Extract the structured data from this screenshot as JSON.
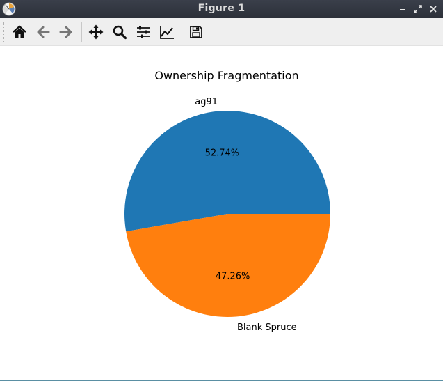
{
  "window": {
    "title": "Figure 1"
  },
  "toolbar": {
    "tools": [
      {
        "name": "home-icon",
        "tooltip": ""
      },
      {
        "name": "back-arrow-icon",
        "tooltip": ""
      },
      {
        "name": "forward-arrow-icon",
        "tooltip": ""
      },
      {
        "name": "pan-move-icon",
        "tooltip": ""
      },
      {
        "name": "zoom-magnifier-icon",
        "tooltip": ""
      },
      {
        "name": "configure-subplots-icon",
        "tooltip": ""
      },
      {
        "name": "edit-axis-curve-icon",
        "tooltip": ""
      },
      {
        "name": "save-floppy-icon",
        "tooltip": ""
      }
    ]
  },
  "colors": {
    "slice_1": "#1f77b4",
    "slice_2": "#ff7f0e",
    "titlebar": "#2e3440",
    "toolbar": "#efefef"
  },
  "chart_data": {
    "type": "pie",
    "title": "Ownership Fragmentation",
    "categories": [
      "ag91",
      "Blank Spruce"
    ],
    "values": [
      52.74,
      47.26
    ],
    "value_labels": [
      "52.74%",
      "47.26%"
    ],
    "colors": [
      "#1f77b4",
      "#ff7f0e"
    ],
    "start_angle_deg": 0,
    "direction": "counterclockwise",
    "legend": "none"
  }
}
